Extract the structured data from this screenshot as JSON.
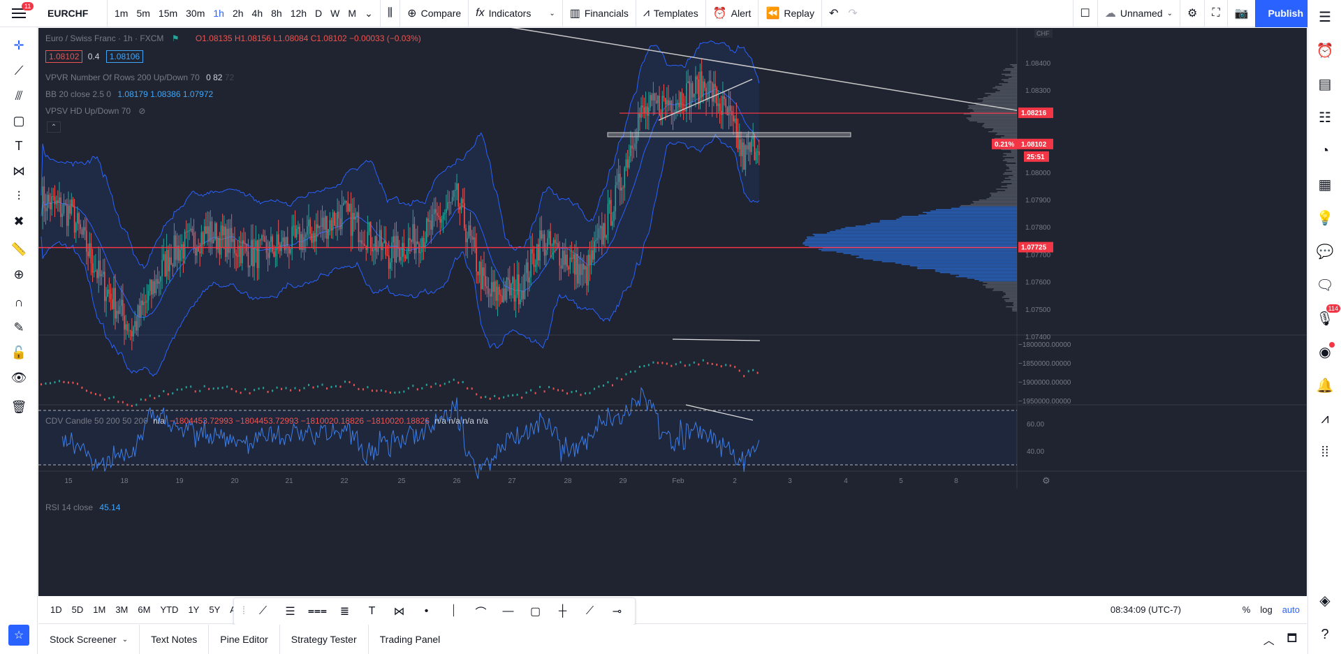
{
  "topbar": {
    "notifications": "11",
    "symbol": "EURCHF",
    "intervals": [
      "1m",
      "5m",
      "15m",
      "30m",
      "1h",
      "2h",
      "4h",
      "8h",
      "12h",
      "D",
      "W",
      "M"
    ],
    "active_interval": "1h",
    "compare": "Compare",
    "indicators": "Indicators",
    "financials": "Financials",
    "templates": "Templates",
    "alert": "Alert",
    "replay": "Replay",
    "layout_name": "Unnamed",
    "publish": "Publish"
  },
  "legend": {
    "title": "Euro / Swiss Franc · 1h · FXCM",
    "ohlc": "O1.08135 H1.08156 L1.08084 C1.08102 −0.00033 (−0.03%)",
    "bid": "1.08102",
    "spread": "0.4",
    "ask": "1.08106",
    "vpvr_label": "VPVR Number Of Rows 200 Up/Down 70",
    "vpvr_values": "0 82",
    "vpvr_tail": "72",
    "bb_label": "BB 20 close 2.5 0",
    "bb_values": "1.08179 1.08386 1.07972",
    "vpsv_label": "VPSV HD Up/Down 70",
    "cdv_label": "CDV Candle 50 200 50 200",
    "cdv_na": "n/a",
    "cdv_values": "−1804453.72993 −1804453.72993 −1810020.18826 −1810020.18826",
    "cdv_na_tail": "n/a n/a n/a n/a",
    "rsi_label": "RSI 14 close",
    "rsi_value": "45.14"
  },
  "price_scale": {
    "currency": "CHF",
    "labels": [
      "1.08400",
      "1.08300",
      "1.08000",
      "1.07900",
      "1.07800",
      "1.07700",
      "1.07600",
      "1.07500",
      "1.07400"
    ],
    "tag_resistance": "1.08216",
    "tag_last_pct": "0.21%",
    "tag_last": "1.08102",
    "countdown": "25:51",
    "tag_support": "1.07725",
    "cdv_labels": [
      "−1800000.00000",
      "−1850000.00000",
      "−1900000.00000",
      "−1950000.00000"
    ],
    "rsi_labels": [
      "60.00",
      "40.00"
    ]
  },
  "time_axis": [
    "15",
    "18",
    "19",
    "20",
    "21",
    "22",
    "25",
    "26",
    "27",
    "28",
    "29",
    "Feb",
    "2",
    "3",
    "4",
    "5",
    "8"
  ],
  "rangebar": {
    "ranges": [
      "1D",
      "5D",
      "1M",
      "3M",
      "6M",
      "YTD",
      "1Y",
      "5Y",
      "All"
    ],
    "clock": "08:34:09 (UTC-7)",
    "percent": "%",
    "log": "log",
    "auto": "auto"
  },
  "bottom_tabs": [
    "Stock Screener",
    "Text Notes",
    "Pine Editor",
    "Strategy Tester",
    "Trading Panel"
  ],
  "rightbar_badge": "114",
  "colors": {
    "bg": "#1f2430",
    "up": "#26a69a",
    "down": "#ef5350",
    "band": "#2962ff",
    "hline": "#f23645"
  }
}
